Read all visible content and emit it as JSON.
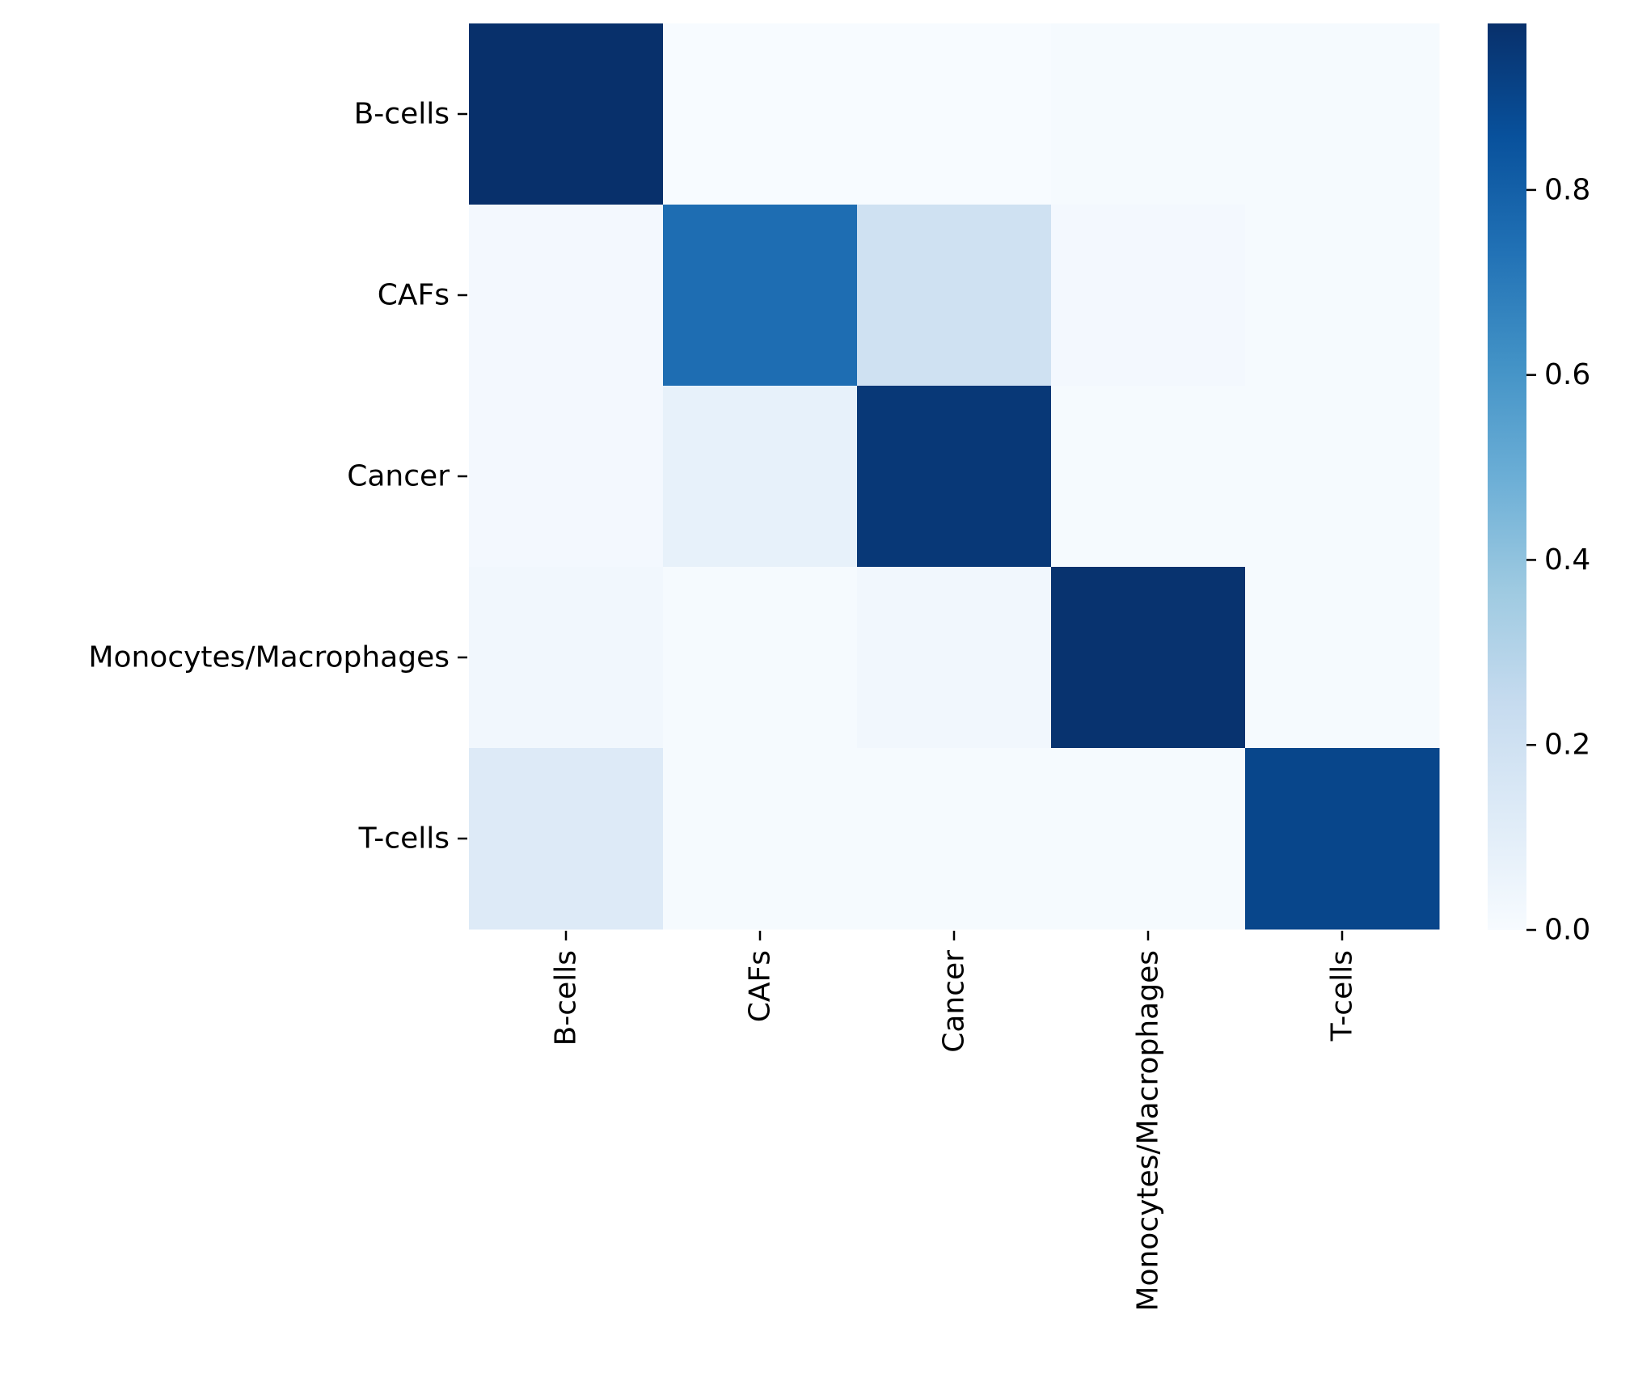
{
  "chart_data": {
    "type": "heatmap",
    "title": "",
    "xlabel": "",
    "ylabel": "",
    "x_categories": [
      "B-cells",
      "CAFs",
      "Cancer",
      "Monocytes/Macrophages",
      "T-cells"
    ],
    "y_categories": [
      "B-cells",
      "CAFs",
      "Cancer",
      "Monocytes/Macrophages",
      "T-cells"
    ],
    "values": [
      [
        0.98,
        0.0,
        0.0,
        0.01,
        0.01
      ],
      [
        0.02,
        0.75,
        0.2,
        0.02,
        0.01
      ],
      [
        0.02,
        0.08,
        0.95,
        0.01,
        0.01
      ],
      [
        0.03,
        0.01,
        0.03,
        0.97,
        0.01
      ],
      [
        0.13,
        0.01,
        0.01,
        0.01,
        0.9
      ]
    ],
    "colormap": "Blues",
    "color_range": [
      0.0,
      0.98
    ],
    "colorbar": {
      "ticks": [
        0.0,
        0.2,
        0.4,
        0.6,
        0.8
      ],
      "tick_labels": [
        "0.0",
        "0.2",
        "0.4",
        "0.6",
        "0.8"
      ]
    },
    "grid": false,
    "legend": "colorbar-right"
  }
}
